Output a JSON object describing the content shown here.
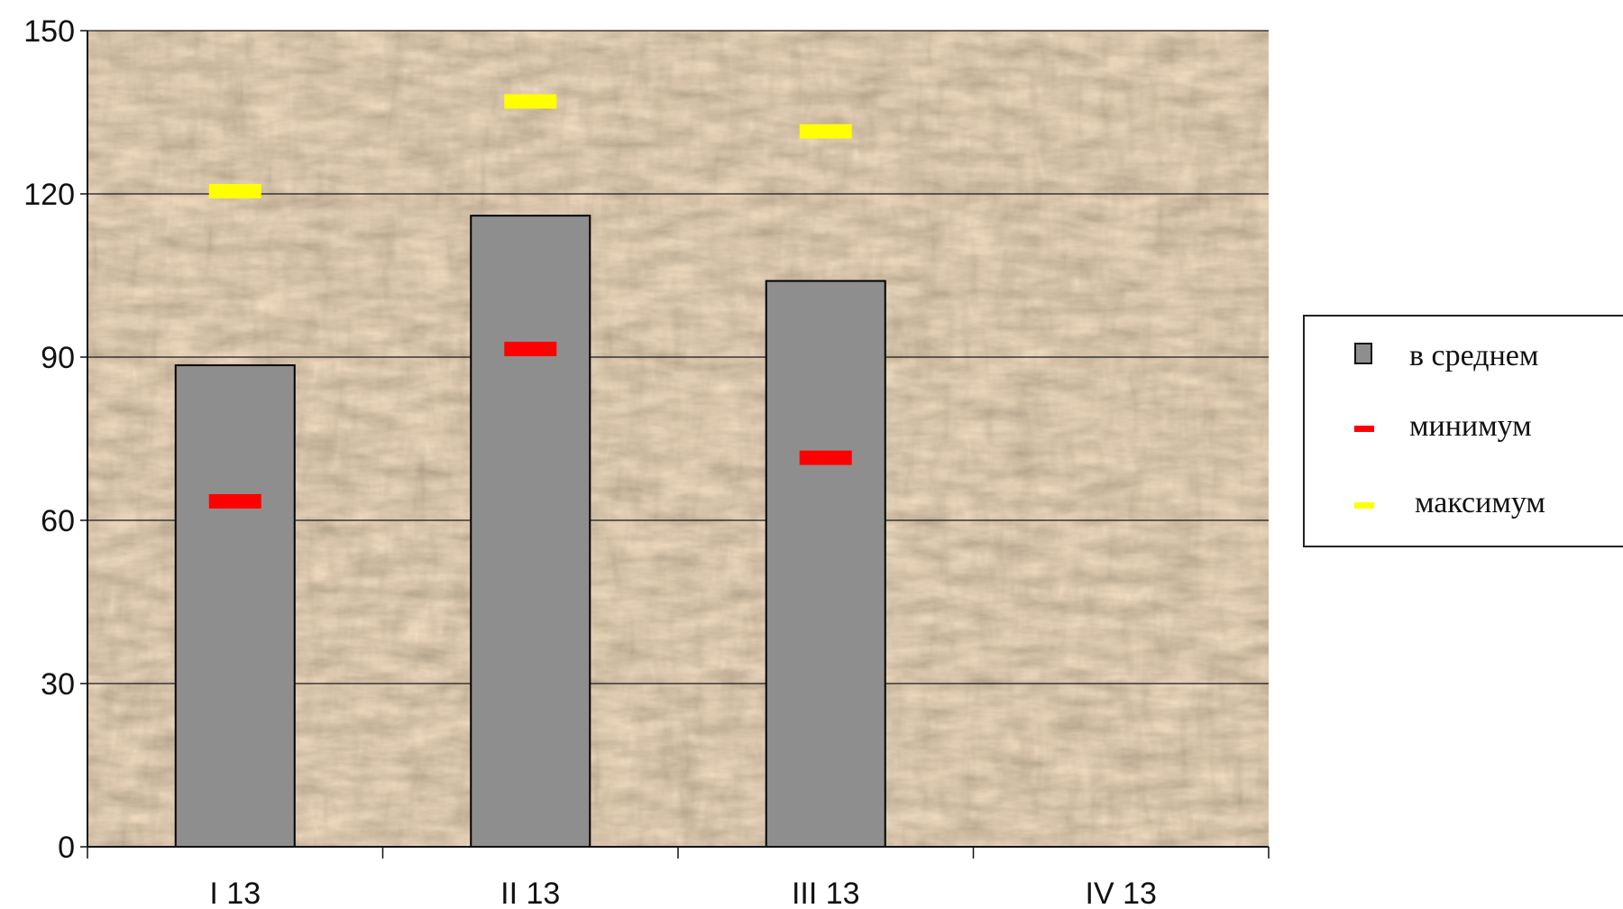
{
  "chart_data": {
    "type": "bar",
    "title": "",
    "xlabel": "",
    "ylabel": "",
    "categories": [
      "I 13",
      "II 13",
      "III 13",
      "IV 13"
    ],
    "ylim": [
      0,
      150
    ],
    "y_ticks": [
      0,
      30,
      60,
      90,
      120,
      150
    ],
    "grid": true,
    "legend_position": "right",
    "series": [
      {
        "name": "в среднем",
        "kind": "bar",
        "color": "#8e8e8e",
        "values": [
          88.5,
          116,
          104,
          null
        ]
      },
      {
        "name": "минимум",
        "kind": "marker",
        "color": "#ff0000",
        "values": [
          63.5,
          91.5,
          71.5,
          null
        ]
      },
      {
        "name": "максимум",
        "kind": "marker",
        "color": "#ffff00",
        "values": [
          120.5,
          137,
          131.5,
          null
        ]
      }
    ],
    "background": "wood-chips-photo"
  }
}
